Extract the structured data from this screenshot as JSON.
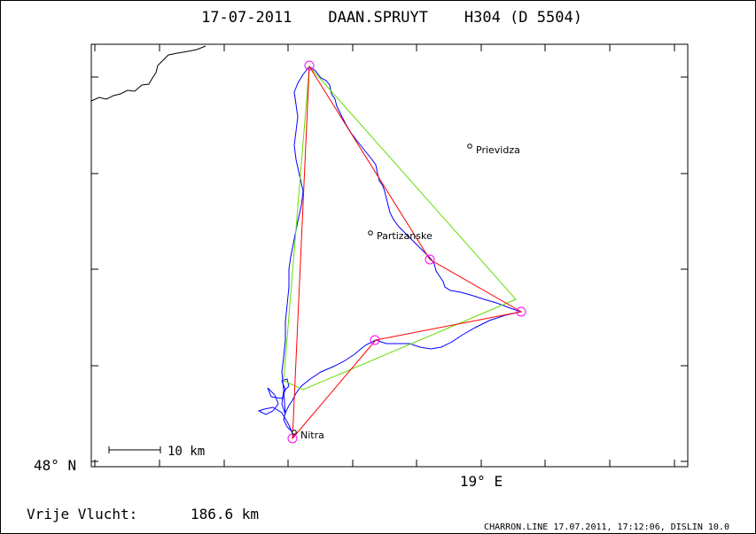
{
  "header": {
    "title": "17-07-2011    DAAN.SPRUYT    H304 (D 5504)"
  },
  "map": {
    "latitude_label": "48° N",
    "longitude_label": "19° E",
    "scale_label": "10 km",
    "towns": [
      {
        "name": "Prievidza"
      },
      {
        "name": "Partizanske"
      },
      {
        "name": "Nitra"
      }
    ],
    "colors": {
      "track": "#0000ff",
      "flown_task": "#ff0000",
      "optimized_task": "#66dd00",
      "turnpoint": "#ff00ff",
      "border": "#000000"
    }
  },
  "footer": {
    "distance_label": "Vrije Vlucht:",
    "distance_value": "186.6 km",
    "credit": "CHARRON.LINE 17.07.2011, 17:12:06, DISLIN 10.0"
  }
}
